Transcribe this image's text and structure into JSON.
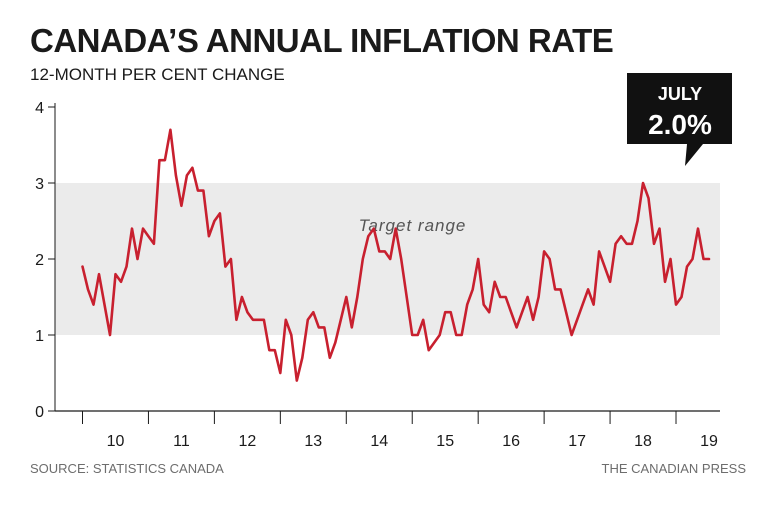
{
  "header": {
    "title": "CANADA’S ANNUAL INFLATION RATE",
    "subtitle": "12-MONTH PER CENT CHANGE"
  },
  "footer": {
    "source": "SOURCE: STATISTICS CANADA",
    "credit": "THE CANADIAN PRESS"
  },
  "callout": {
    "line1": "JULY",
    "line2": "2.0%",
    "bg_color": "#111111"
  },
  "chart_data": {
    "type": "line",
    "title": "CANADA’S ANNUAL INFLATION RATE",
    "subtitle": "12-MONTH PER CENT CHANGE",
    "xlabel": "",
    "ylabel": "",
    "ylim": [
      0,
      4
    ],
    "yticks": [
      "0",
      "1",
      "2",
      "3",
      "4"
    ],
    "xlim": [
      2009.583,
      2019.667
    ],
    "x_tick_labels": [
      "10",
      "11",
      "12",
      "13",
      "14",
      "15",
      "16",
      "17",
      "18",
      "19"
    ],
    "grid": false,
    "line_color": "#c8202f",
    "band": {
      "label": "Target range",
      "y_from": 1,
      "y_to": 3,
      "color": "#ebebeb"
    },
    "series": [
      {
        "values": [
          1.9,
          1.6,
          1.4,
          1.8,
          1.4,
          1.0,
          1.8,
          1.7,
          1.9,
          2.4,
          2.0,
          2.4,
          2.3,
          2.2,
          3.3,
          3.3,
          3.7,
          3.1,
          2.7,
          3.1,
          3.2,
          2.9,
          2.9,
          2.3,
          2.5,
          2.6,
          1.9,
          2.0,
          1.2,
          1.5,
          1.3,
          1.2,
          1.2,
          1.2,
          0.8,
          0.8,
          0.5,
          1.2,
          1.0,
          0.4,
          0.7,
          1.2,
          1.3,
          1.1,
          1.1,
          0.7,
          0.9,
          1.2,
          1.5,
          1.1,
          1.5,
          2.0,
          2.3,
          2.4,
          2.1,
          2.1,
          2.0,
          2.4,
          2.0,
          1.5,
          1.0,
          1.0,
          1.2,
          0.8,
          0.9,
          1.0,
          1.3,
          1.3,
          1.0,
          1.0,
          1.4,
          1.6,
          2.0,
          1.4,
          1.3,
          1.7,
          1.5,
          1.5,
          1.3,
          1.1,
          1.3,
          1.5,
          1.2,
          1.5,
          2.1,
          2.0,
          1.6,
          1.6,
          1.3,
          1.0,
          1.2,
          1.4,
          1.6,
          1.4,
          2.1,
          1.9,
          1.7,
          2.2,
          2.3,
          2.2,
          2.2,
          2.5,
          3.0,
          2.8,
          2.2,
          2.4,
          1.7,
          2.0,
          1.4,
          1.5,
          1.9,
          2.0,
          2.4,
          2.0,
          2.0
        ]
      }
    ]
  }
}
